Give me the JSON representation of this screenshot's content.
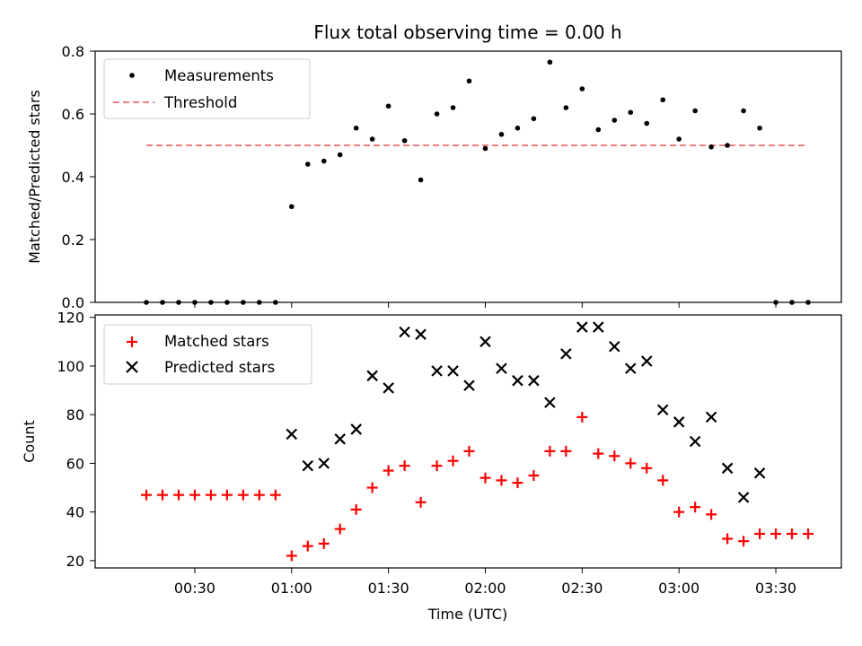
{
  "chart_data": [
    {
      "type": "scatter",
      "title": "Flux total observing time = 0.00 h",
      "ylabel": "Matched/Predicted stars",
      "xlabel": "",
      "ylim": [
        0,
        0.8
      ],
      "yticks": [
        "0.0",
        "0.2",
        "0.4",
        "0.6",
        "0.8"
      ],
      "legend": "top-left",
      "series": [
        {
          "name": "Measurements",
          "color": "#000000",
          "marker": "dot",
          "x": [
            "00:15",
            "00:20",
            "00:25",
            "00:30",
            "00:35",
            "00:40",
            "00:45",
            "00:50",
            "00:55",
            "01:00",
            "01:05",
            "01:10",
            "01:15",
            "01:20",
            "01:25",
            "01:30",
            "01:35",
            "01:40",
            "01:45",
            "01:50",
            "01:55",
            "02:00",
            "02:05",
            "02:10",
            "02:15",
            "02:20",
            "02:25",
            "02:30",
            "02:35",
            "02:40",
            "02:45",
            "02:50",
            "02:55",
            "03:00",
            "03:05",
            "03:10",
            "03:15",
            "03:20",
            "03:25",
            "03:30",
            "03:35",
            "03:40"
          ],
          "y": [
            0,
            0,
            0,
            0,
            0,
            0,
            0,
            0,
            0,
            0.305,
            0.44,
            0.45,
            0.47,
            0.555,
            0.52,
            0.625,
            0.515,
            0.39,
            0.6,
            0.62,
            0.705,
            0.49,
            0.535,
            0.555,
            0.585,
            0.765,
            0.62,
            0.68,
            0.55,
            0.58,
            0.605,
            0.57,
            0.645,
            0.52,
            0.61,
            0.495,
            0.5,
            0.61,
            0.555,
            0,
            0,
            0
          ]
        },
        {
          "name": "Threshold",
          "color": "#f08080",
          "style": "dashed",
          "x": [
            "00:15",
            "03:40"
          ],
          "y": [
            0.5,
            0.5
          ]
        }
      ]
    },
    {
      "type": "scatter",
      "title": "",
      "ylabel": "Count",
      "xlabel": "Time (UTC)",
      "ylim": [
        17,
        121
      ],
      "yticks": [
        "20",
        "40",
        "60",
        "80",
        "100",
        "120"
      ],
      "xticks": [
        "00:30",
        "01:00",
        "01:30",
        "02:00",
        "02:30",
        "03:00",
        "03:30"
      ],
      "legend": "top-left",
      "series": [
        {
          "name": "Matched stars",
          "color": "#ff0000",
          "marker": "plus",
          "x": [
            "00:15",
            "00:20",
            "00:25",
            "00:30",
            "00:35",
            "00:40",
            "00:45",
            "00:50",
            "00:55",
            "01:00",
            "01:05",
            "01:10",
            "01:15",
            "01:20",
            "01:25",
            "01:30",
            "01:35",
            "01:40",
            "01:45",
            "01:50",
            "01:55",
            "02:00",
            "02:05",
            "02:10",
            "02:15",
            "02:20",
            "02:25",
            "02:30",
            "02:35",
            "02:40",
            "02:45",
            "02:50",
            "02:55",
            "03:00",
            "03:05",
            "03:10",
            "03:15",
            "03:20",
            "03:25",
            "03:30",
            "03:35",
            "03:40"
          ],
          "y": [
            47,
            47,
            47,
            47,
            47,
            47,
            47,
            47,
            47,
            22,
            26,
            27,
            33,
            41,
            50,
            57,
            59,
            44,
            59,
            61,
            65,
            54,
            53,
            52,
            55,
            65,
            65,
            79,
            64,
            63,
            60,
            58,
            53,
            40,
            42,
            39,
            29,
            28,
            31,
            31,
            31,
            31
          ]
        },
        {
          "name": "Predicted stars",
          "color": "#000000",
          "marker": "x",
          "x": [
            "01:00",
            "01:05",
            "01:10",
            "01:15",
            "01:20",
            "01:25",
            "01:30",
            "01:35",
            "01:40",
            "01:45",
            "01:50",
            "01:55",
            "02:00",
            "02:05",
            "02:10",
            "02:15",
            "02:20",
            "02:25",
            "02:30",
            "02:35",
            "02:40",
            "02:45",
            "02:50",
            "02:55",
            "03:00",
            "03:05",
            "03:10",
            "03:15",
            "03:20",
            "03:25"
          ],
          "y": [
            72,
            59,
            60,
            70,
            74,
            96,
            91,
            114,
            113,
            98,
            98,
            92,
            110,
            99,
            94,
            94,
            85,
            105,
            116,
            116,
            108,
            99,
            102,
            82,
            77,
            69,
            79,
            58,
            46,
            56
          ]
        }
      ]
    }
  ]
}
